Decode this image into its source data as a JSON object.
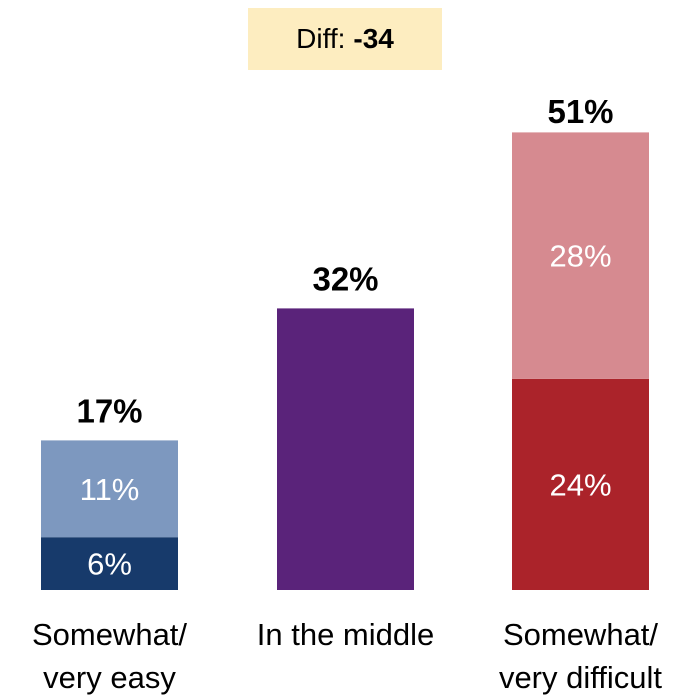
{
  "annotation": {
    "label": "Diff:",
    "value": "-34"
  },
  "chart_data": {
    "type": "bar",
    "stacked": true,
    "categories": [
      [
        "Somewhat/",
        "very easy"
      ],
      [
        "In the middle"
      ],
      [
        "Somewhat/",
        "very difficult"
      ]
    ],
    "totals": [
      "17%",
      "32%",
      "51%"
    ],
    "bars": [
      {
        "total": 17,
        "segments": [
          {
            "value": 6,
            "label": "6%",
            "color": "#173a6b"
          },
          {
            "value": 11,
            "label": "11%",
            "color": "#7d98bf"
          }
        ]
      },
      {
        "total": 32,
        "segments": [
          {
            "value": 32,
            "label": "",
            "color": "#5a237a"
          }
        ]
      },
      {
        "total": 51,
        "segments": [
          {
            "value": 24,
            "label": "24%",
            "color": "#ab232a"
          },
          {
            "value": 28,
            "label": "28%",
            "color": "#d68a90"
          }
        ]
      }
    ]
  }
}
